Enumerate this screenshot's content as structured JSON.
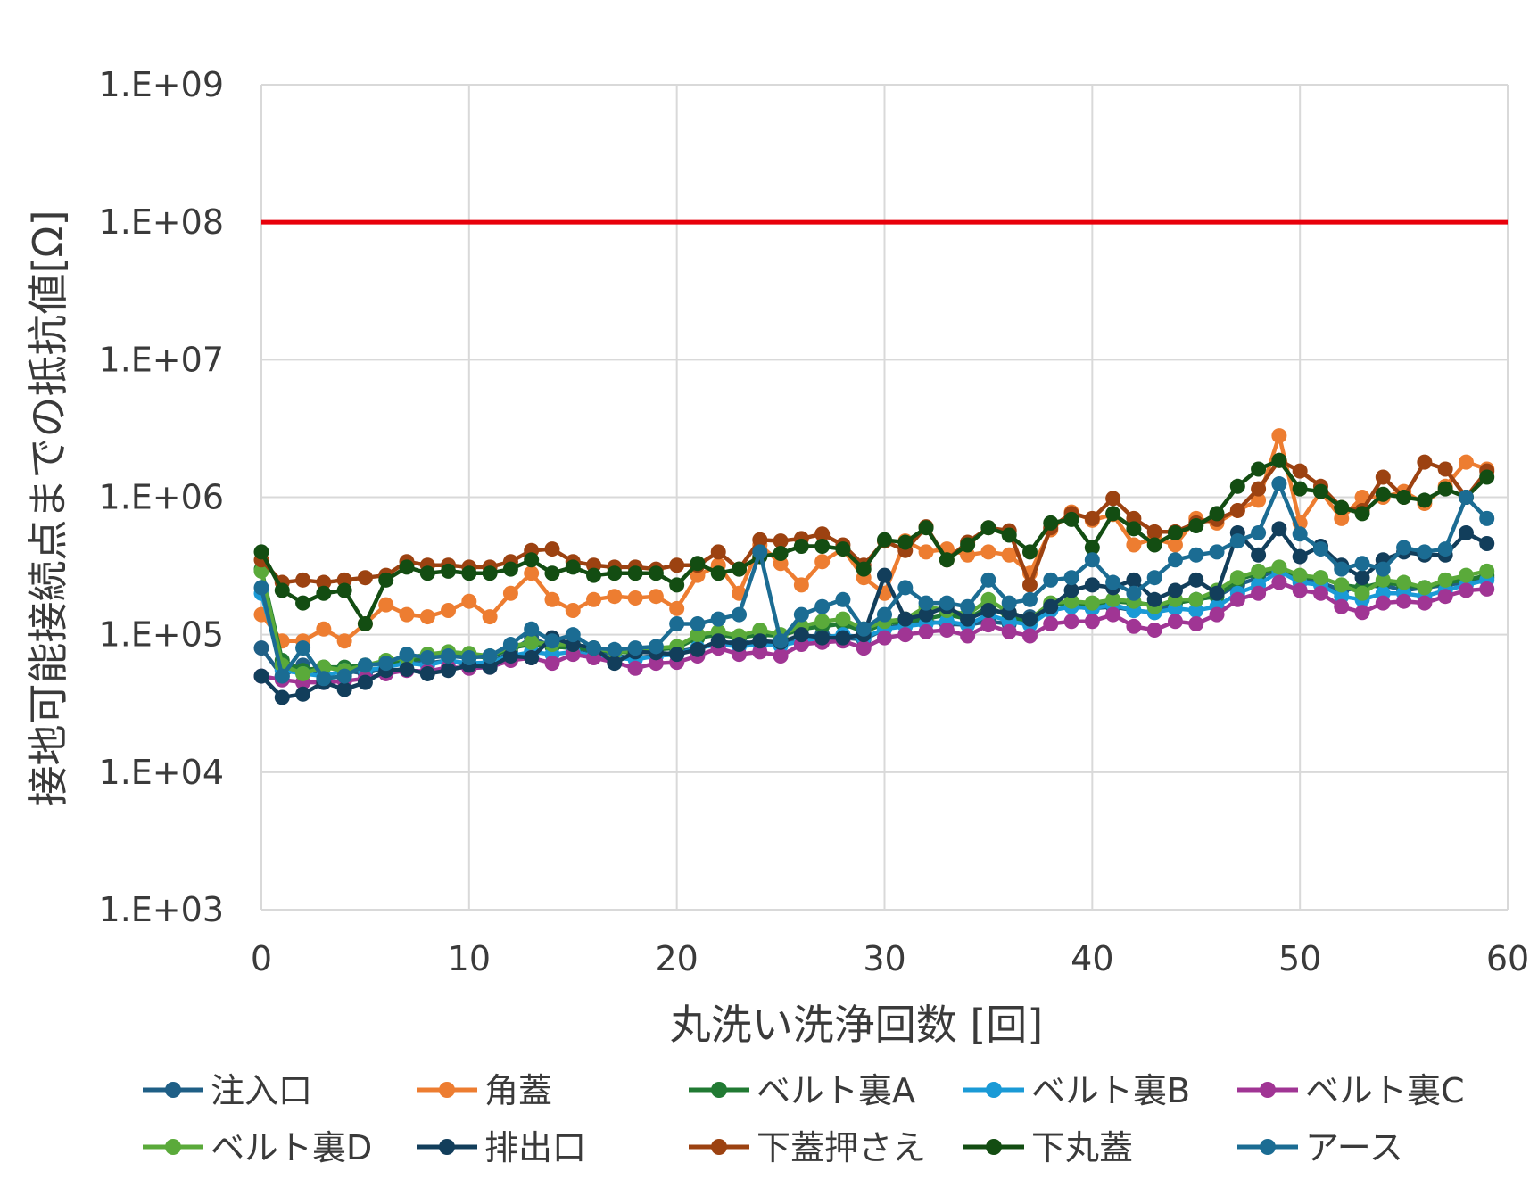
{
  "chart_data": {
    "type": "line",
    "xlabel": "丸洗い洗浄回数 [回]",
    "ylabel": "接地可能接続点までの抵抗値[Ω]",
    "xlim": [
      0,
      60
    ],
    "ylim": [
      1000,
      1000000000
    ],
    "yscale": "log",
    "x_ticks": [
      "0",
      "10",
      "20",
      "30",
      "40",
      "50",
      "60"
    ],
    "y_ticks": [
      "1.E+03",
      "1.E+04",
      "1.E+05",
      "1.E+06",
      "1.E+07",
      "1.E+08",
      "1.E+09"
    ],
    "grid": true,
    "legend_position": "bottom",
    "threshold": {
      "value": 100000000,
      "color": "#e8000b"
    },
    "series": [
      {
        "name": "注入口",
        "color": "#1f5f86",
        "values": [
          80000,
          50000,
          60000,
          50000,
          55000,
          52000,
          58000,
          65000,
          62000,
          65000,
          60000,
          62000,
          75000,
          95000,
          82000,
          80000,
          75000,
          70000,
          68000,
          70000,
          75000,
          80000,
          85000,
          90000,
          85000,
          88000,
          95000,
          100000,
          95000,
          92000,
          110000,
          120000,
          125000,
          120000,
          118000,
          125000,
          120000,
          135000,
          150000,
          160000,
          155000,
          160000,
          150000,
          145000,
          170000,
          180000,
          190000,
          230000,
          260000,
          300000,
          250000,
          240000,
          210000,
          220000,
          230000,
          210000,
          220000,
          230000,
          240000,
          260000
        ]
      },
      {
        "name": "角蓋",
        "color": "#ed7d31",
        "values": [
          140000,
          90000,
          90000,
          110000,
          90000,
          120000,
          165000,
          140000,
          135000,
          150000,
          175000,
          135000,
          200000,
          280000,
          180000,
          150000,
          180000,
          190000,
          185000,
          190000,
          155000,
          270000,
          320000,
          200000,
          450000,
          330000,
          230000,
          340000,
          420000,
          260000,
          200000,
          480000,
          400000,
          420000,
          380000,
          400000,
          380000,
          280000,
          580000,
          780000,
          680000,
          750000,
          450000,
          500000,
          450000,
          700000,
          650000,
          800000,
          950000,
          2800000,
          650000,
          1100000,
          700000,
          1000000,
          1000000,
          1100000,
          900000,
          1200000,
          1800000,
          1600000
        ]
      },
      {
        "name": "ベルト裏A",
        "color": "#217a33",
        "values": [
          300000,
          65000,
          55000,
          58000,
          58000,
          60000,
          62000,
          65000,
          68000,
          72000,
          70000,
          68000,
          80000,
          85000,
          82000,
          80000,
          78000,
          75000,
          74000,
          78000,
          80000,
          95000,
          100000,
          95000,
          100000,
          98000,
          110000,
          115000,
          120000,
          105000,
          120000,
          125000,
          130000,
          140000,
          130000,
          160000,
          135000,
          125000,
          165000,
          170000,
          165000,
          175000,
          170000,
          165000,
          170000,
          180000,
          190000,
          250000,
          280000,
          300000,
          260000,
          260000,
          230000,
          220000,
          240000,
          230000,
          220000,
          240000,
          250000,
          270000
        ]
      },
      {
        "name": "ベルト裏B",
        "color": "#1a9ad6",
        "values": [
          200000,
          55000,
          52000,
          50000,
          55000,
          55000,
          58000,
          62000,
          60000,
          65000,
          62000,
          63000,
          70000,
          75000,
          72000,
          75000,
          70000,
          68000,
          66000,
          70000,
          72000,
          80000,
          85000,
          82000,
          85000,
          83000,
          90000,
          95000,
          100000,
          95000,
          110000,
          115000,
          120000,
          125000,
          118000,
          140000,
          125000,
          118000,
          150000,
          160000,
          155000,
          165000,
          150000,
          145000,
          155000,
          150000,
          160000,
          200000,
          230000,
          290000,
          240000,
          230000,
          190000,
          180000,
          200000,
          200000,
          190000,
          210000,
          230000,
          250000
        ]
      },
      {
        "name": "ベルト裏C",
        "color": "#a03594",
        "values": [
          50000,
          47000,
          45000,
          45000,
          46000,
          48000,
          52000,
          55000,
          54000,
          58000,
          57000,
          58000,
          65000,
          68000,
          62000,
          72000,
          68000,
          63000,
          57000,
          62000,
          63000,
          70000,
          80000,
          72000,
          75000,
          70000,
          85000,
          88000,
          90000,
          80000,
          95000,
          100000,
          105000,
          108000,
          98000,
          118000,
          105000,
          98000,
          120000,
          125000,
          125000,
          140000,
          115000,
          108000,
          125000,
          120000,
          140000,
          180000,
          200000,
          240000,
          210000,
          200000,
          160000,
          145000,
          170000,
          175000,
          170000,
          190000,
          210000,
          215000
        ]
      },
      {
        "name": "ベルト裏D",
        "color": "#5aaa3a",
        "values": [
          290000,
          60000,
          52000,
          58000,
          55000,
          60000,
          65000,
          68000,
          72000,
          75000,
          73000,
          70000,
          82000,
          88000,
          85000,
          85000,
          80000,
          75000,
          76000,
          80000,
          82000,
          100000,
          105000,
          98000,
          108000,
          100000,
          115000,
          125000,
          130000,
          110000,
          125000,
          130000,
          160000,
          150000,
          140000,
          180000,
          145000,
          130000,
          170000,
          175000,
          170000,
          180000,
          175000,
          160000,
          180000,
          180000,
          210000,
          260000,
          290000,
          310000,
          270000,
          260000,
          230000,
          200000,
          250000,
          240000,
          220000,
          250000,
          270000,
          290000
        ]
      },
      {
        "name": "排出口",
        "color": "#123e5b",
        "values": [
          50000,
          35000,
          37000,
          45000,
          40000,
          45000,
          55000,
          56000,
          52000,
          55000,
          60000,
          58000,
          70000,
          68000,
          95000,
          85000,
          80000,
          62000,
          75000,
          74000,
          72000,
          78000,
          90000,
          85000,
          90000,
          88000,
          100000,
          95000,
          95000,
          100000,
          270000,
          130000,
          140000,
          160000,
          130000,
          150000,
          145000,
          130000,
          160000,
          210000,
          230000,
          220000,
          250000,
          180000,
          210000,
          250000,
          200000,
          550000,
          380000,
          590000,
          370000,
          440000,
          320000,
          260000,
          350000,
          400000,
          380000,
          380000,
          550000,
          460000
        ]
      },
      {
        "name": "下蓋押さえ",
        "color": "#9c4211",
        "values": [
          350000,
          240000,
          250000,
          240000,
          250000,
          260000,
          270000,
          340000,
          320000,
          320000,
          310000,
          310000,
          340000,
          410000,
          420000,
          340000,
          320000,
          310000,
          310000,
          300000,
          320000,
          320000,
          400000,
          300000,
          490000,
          480000,
          500000,
          540000,
          450000,
          320000,
          480000,
          410000,
          610000,
          350000,
          470000,
          600000,
          570000,
          230000,
          600000,
          760000,
          700000,
          980000,
          700000,
          560000,
          560000,
          650000,
          690000,
          800000,
          1150000,
          1850000,
          1550000,
          1200000,
          840000,
          800000,
          1400000,
          1000000,
          1800000,
          1600000,
          1000000,
          1550000
        ]
      },
      {
        "name": "下丸蓋",
        "color": "#134d12",
        "values": [
          400000,
          210000,
          170000,
          200000,
          210000,
          120000,
          250000,
          310000,
          280000,
          290000,
          280000,
          280000,
          300000,
          350000,
          280000,
          310000,
          270000,
          280000,
          280000,
          280000,
          230000,
          330000,
          280000,
          300000,
          370000,
          390000,
          440000,
          440000,
          420000,
          300000,
          490000,
          470000,
          600000,
          350000,
          450000,
          600000,
          530000,
          400000,
          650000,
          690000,
          430000,
          760000,
          590000,
          450000,
          550000,
          620000,
          760000,
          1200000,
          1600000,
          1850000,
          1150000,
          1100000,
          840000,
          760000,
          1050000,
          1000000,
          950000,
          1150000,
          1000000,
          1400000
        ]
      },
      {
        "name": "アース",
        "color": "#1b6c93",
        "values": [
          220000,
          50000,
          80000,
          48000,
          50000,
          60000,
          62000,
          72000,
          68000,
          70000,
          68000,
          70000,
          85000,
          110000,
          90000,
          100000,
          80000,
          78000,
          80000,
          82000,
          120000,
          120000,
          130000,
          140000,
          400000,
          90000,
          140000,
          160000,
          180000,
          110000,
          140000,
          220000,
          170000,
          170000,
          160000,
          250000,
          170000,
          180000,
          250000,
          260000,
          350000,
          240000,
          200000,
          260000,
          350000,
          380000,
          400000,
          480000,
          550000,
          1250000,
          540000,
          420000,
          300000,
          330000,
          300000,
          430000,
          400000,
          420000,
          1000000,
          700000
        ]
      }
    ]
  }
}
